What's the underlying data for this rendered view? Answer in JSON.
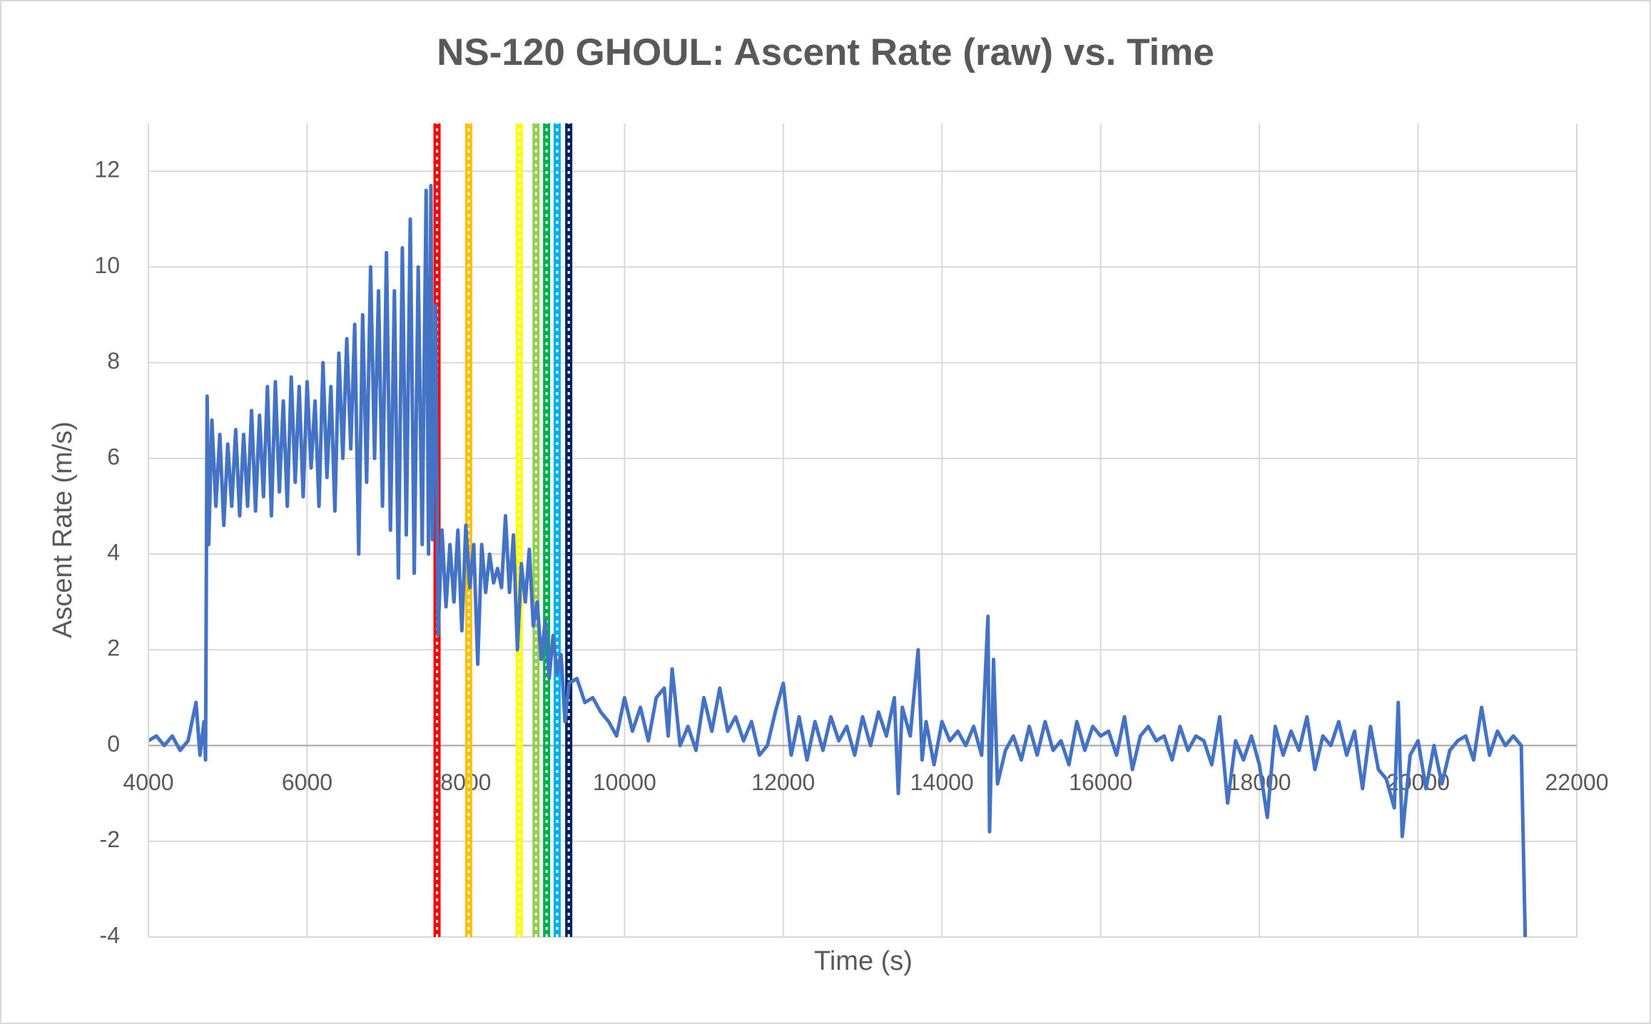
{
  "chart_data": {
    "type": "line",
    "title": "NS-120 GHOUL: Ascent Rate (raw) vs. Time",
    "x_label": "Time (s)",
    "y_label": "Ascent Rate (m/s)",
    "xlim": [
      4000,
      22000
    ],
    "xticks": [
      4000,
      6000,
      8000,
      10000,
      12000,
      14000,
      16000,
      18000,
      20000,
      22000
    ],
    "ylim": [
      -4,
      13
    ],
    "yticks": [
      -4,
      -2,
      0,
      2,
      4,
      6,
      8,
      10,
      12
    ],
    "grid": true,
    "series": [
      {
        "color": "#ff0000",
        "dashed": true,
        "x": [
          7637,
          7637
        ],
        "values": [
          -4,
          13
        ]
      },
      {
        "color": "#ffc000",
        "dashed": true,
        "x": [
          8036,
          8036
        ],
        "values": [
          -4,
          13
        ]
      },
      {
        "color": "#ffff00",
        "dashed": true,
        "x": [
          8673,
          8673
        ],
        "values": [
          -4,
          13
        ]
      },
      {
        "color": "#92d050",
        "dashed": true,
        "x": [
          8885,
          8885
        ],
        "values": [
          -4,
          13
        ]
      },
      {
        "color": "#00b050",
        "dashed": true,
        "x": [
          9018,
          9018
        ],
        "values": [
          -4,
          13
        ]
      },
      {
        "color": "#00b0f0",
        "dashed": true,
        "x": [
          9151,
          9151
        ],
        "values": [
          -4,
          13
        ]
      },
      {
        "color": "#002060",
        "dashed": true,
        "x": [
          9297,
          9297
        ],
        "values": [
          -4,
          13
        ]
      },
      {
        "color": "#4472c4",
        "dashed": false,
        "x": [
          4000,
          4100,
          4200,
          4300,
          4400,
          4500,
          4600,
          4650,
          4700,
          4720,
          4740,
          4760,
          4800,
          4850,
          4900,
          4950,
          5000,
          5050,
          5100,
          5150,
          5200,
          5250,
          5300,
          5350,
          5400,
          5450,
          5500,
          5550,
          5600,
          5650,
          5700,
          5750,
          5800,
          5850,
          5900,
          5950,
          6000,
          6050,
          6100,
          6150,
          6200,
          6250,
          6300,
          6350,
          6400,
          6450,
          6500,
          6550,
          6600,
          6650,
          6700,
          6750,
          6800,
          6850,
          6900,
          6950,
          7000,
          7050,
          7100,
          7150,
          7200,
          7250,
          7300,
          7350,
          7400,
          7450,
          7500,
          7530,
          7560,
          7580,
          7620,
          7650,
          7700,
          7750,
          7800,
          7850,
          7900,
          7950,
          8000,
          8050,
          8100,
          8150,
          8200,
          8250,
          8300,
          8350,
          8400,
          8450,
          8500,
          8550,
          8600,
          8650,
          8700,
          8750,
          8800,
          8850,
          8900,
          8950,
          9000,
          9050,
          9100,
          9150,
          9200,
          9250,
          9300,
          9400,
          9500,
          9600,
          9700,
          9800,
          9900,
          10000,
          10100,
          10200,
          10300,
          10400,
          10500,
          10550,
          10600,
          10700,
          10800,
          10900,
          11000,
          11100,
          11200,
          11300,
          11400,
          11500,
          11600,
          11700,
          11800,
          11900,
          12000,
          12100,
          12200,
          12300,
          12400,
          12500,
          12600,
          12700,
          12800,
          12900,
          13000,
          13100,
          13200,
          13300,
          13400,
          13450,
          13500,
          13600,
          13700,
          13750,
          13800,
          13900,
          14000,
          14100,
          14200,
          14300,
          14400,
          14500,
          14580,
          14600,
          14650,
          14700,
          14800,
          14900,
          15000,
          15100,
          15200,
          15300,
          15400,
          15500,
          15600,
          15700,
          15800,
          15900,
          16000,
          16100,
          16200,
          16300,
          16400,
          16500,
          16600,
          16700,
          16800,
          16900,
          17000,
          17100,
          17200,
          17300,
          17400,
          17500,
          17600,
          17700,
          17800,
          17900,
          18000,
          18100,
          18200,
          18300,
          18400,
          18500,
          18600,
          18700,
          18800,
          18900,
          19000,
          19100,
          19200,
          19300,
          19400,
          19500,
          19600,
          19700,
          19750,
          19800,
          19900,
          20000,
          20100,
          20200,
          20300,
          20400,
          20500,
          20600,
          20700,
          20800,
          20900,
          21000,
          21100,
          21200,
          21300,
          21350
        ],
        "values": [
          0.1,
          0.2,
          0,
          0.2,
          -0.1,
          0.1,
          0.9,
          -0.2,
          0.5,
          -0.3,
          7.3,
          4.2,
          6.8,
          5,
          6.5,
          4.6,
          6.3,
          5,
          6.6,
          4.8,
          6.5,
          5,
          7,
          4.9,
          6.9,
          5.2,
          7.5,
          4.8,
          7.6,
          5.3,
          7.2,
          5,
          7.7,
          5.5,
          7.5,
          5.2,
          7.6,
          5.8,
          7.2,
          5,
          8,
          5.6,
          7.5,
          4.9,
          8.2,
          6,
          8.5,
          6.2,
          8.8,
          4,
          9,
          5.5,
          10,
          6,
          9.5,
          5,
          10.3,
          4.5,
          9.5,
          3.5,
          10.4,
          4.4,
          11,
          3.6,
          10,
          4.2,
          11.6,
          4,
          11.7,
          4.3,
          9.2,
          2.3,
          4.5,
          2.9,
          4.2,
          3,
          4.5,
          2.4,
          4.6,
          3.3,
          4.2,
          1.7,
          4.2,
          3.2,
          4,
          3.4,
          3.7,
          3.3,
          4.8,
          3.2,
          4.4,
          2,
          3.8,
          3,
          4.1,
          2.5,
          3,
          1.8,
          2.6,
          1.4,
          2.3,
          1.5,
          1.9,
          0.5,
          1.3,
          1.4,
          0.9,
          1,
          0.7,
          0.5,
          0.2,
          1,
          0.3,
          0.8,
          0.1,
          1,
          1.2,
          0.2,
          1.6,
          0,
          0.4,
          -0.1,
          1,
          0.3,
          1.2,
          0.3,
          0.6,
          0.1,
          0.5,
          -0.2,
          0,
          0.7,
          1.3,
          -0.2,
          0.6,
          -0.3,
          0.5,
          -0.1,
          0.6,
          0.1,
          0.4,
          -0.2,
          0.6,
          0,
          0.7,
          0.2,
          1,
          -1,
          0.8,
          0.2,
          2,
          -0.3,
          0.5,
          -0.4,
          0.5,
          0.1,
          0.3,
          0,
          0.4,
          -0.2,
          2.7,
          -1.8,
          1.8,
          -0.8,
          -0.1,
          0.2,
          -0.3,
          0.4,
          -0.2,
          0.5,
          -0.1,
          0.1,
          -0.4,
          0.5,
          -0.1,
          0.4,
          0.2,
          0.3,
          -0.2,
          0.6,
          -0.5,
          0.2,
          0.4,
          0.1,
          0.2,
          -0.3,
          0.4,
          -0.1,
          0.2,
          0.1,
          -0.4,
          0.6,
          -1.2,
          0.1,
          -0.3,
          0.2,
          -0.4,
          -1.5,
          0.4,
          -0.2,
          0.3,
          -0.1,
          0.6,
          -0.5,
          0.2,
          0,
          0.5,
          -0.2,
          0.3,
          -0.9,
          0.4,
          -0.5,
          -0.7,
          -1.3,
          0.9,
          -1.9,
          -0.2,
          0.1,
          -0.9,
          0,
          -0.8,
          -0.1,
          0.1,
          0.2,
          -0.3,
          0.8,
          -0.2,
          0.3,
          0,
          0.2,
          0,
          -4
        ]
      }
    ]
  }
}
